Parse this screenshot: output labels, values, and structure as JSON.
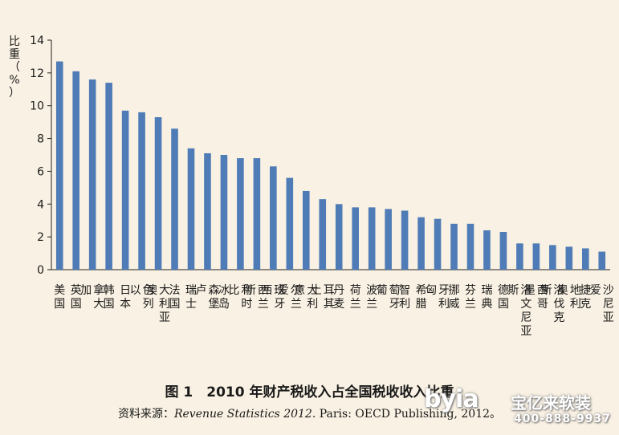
{
  "chart_data": {
    "type": "bar",
    "ylabel": "比重（%）",
    "ylim": [
      0,
      14
    ],
    "yticks": [
      0,
      2,
      4,
      6,
      8,
      10,
      12,
      14
    ],
    "grid": false,
    "bar_color": "#4f7cb6",
    "categories": [
      "美国",
      "英国",
      "加拿大",
      "韩国",
      "日本",
      "以色列",
      "澳大利亚",
      "法国",
      "瑞士",
      "卢森堡",
      "冰岛",
      "比利时",
      "新西兰",
      "西班牙",
      "爱尔兰",
      "意大利",
      "土耳其",
      "丹麦",
      "荷兰",
      "波兰",
      "葡萄牙",
      "智利",
      "希腊",
      "匈牙利",
      "挪威",
      "芬兰",
      "瑞典",
      "德国",
      "斯洛文尼亚",
      "墨西哥",
      "斯洛伐克",
      "奥地利",
      "捷克",
      "爱沙尼亚"
    ],
    "values": [
      12.7,
      12.1,
      11.6,
      11.4,
      9.7,
      9.6,
      9.3,
      8.6,
      7.4,
      7.1,
      7.0,
      6.8,
      6.8,
      6.3,
      5.6,
      4.8,
      4.3,
      4.0,
      3.8,
      3.8,
      3.7,
      3.6,
      3.2,
      3.1,
      2.8,
      2.8,
      2.4,
      2.3,
      1.6,
      1.6,
      1.5,
      1.4,
      1.3,
      1.1
    ]
  },
  "caption": "图 1　2010 年财产税收入占全国税收收入比重",
  "source": {
    "prefix": "资料来源：",
    "title": "Revenue Statistics 2012",
    "rest": ". Paris: OECD Publishing, 2012。"
  },
  "watermark": {
    "brand": "byia",
    "name": "宝亿来软装",
    "phone": "400-888-9937"
  }
}
